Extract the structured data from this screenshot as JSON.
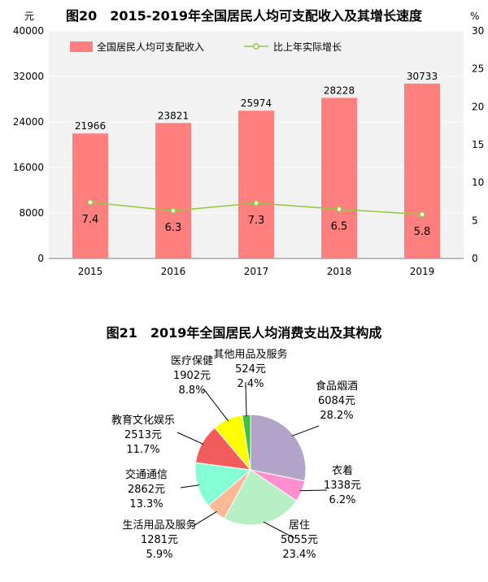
{
  "chart_data": [
    {
      "type": "bar",
      "title": "图20　2015-2019年全国居民人均可支配收入及其增长速度",
      "ylabel": "元",
      "y2label": "%",
      "categories": [
        "2015",
        "2016",
        "2017",
        "2018",
        "2019"
      ],
      "ylim": [
        0,
        40000
      ],
      "y2lim": [
        0,
        30
      ],
      "yticks": [
        "0",
        "8000",
        "16000",
        "24000",
        "32000",
        "40000"
      ],
      "y2ticks": [
        "0",
        "5",
        "10",
        "15",
        "20",
        "25",
        "30"
      ],
      "series": [
        {
          "name": "全国居民人均可支配收入",
          "type": "bar",
          "axis": "left",
          "values": [
            21966,
            23821,
            25974,
            28228,
            30733
          ],
          "color": "#ff7f7f"
        },
        {
          "name": "比上年实际增长",
          "type": "line",
          "axis": "right",
          "values": [
            7.4,
            6.3,
            7.3,
            6.5,
            5.8
          ],
          "color": "#92c83e"
        }
      ],
      "bar_labels": [
        "21966",
        "23821",
        "25974",
        "28228",
        "30733"
      ],
      "line_labels": [
        "7.4",
        "6.3",
        "7.3",
        "6.5",
        "5.8"
      ],
      "legend_position": "top",
      "grid": true
    },
    {
      "type": "pie",
      "title": "图21　2019年全国居民人均消费支出及其构成",
      "slices": [
        {
          "name": "食品烟酒",
          "amount": "6084元",
          "percent": "28.2%",
          "value": 28.2,
          "color": "#b2a4c9"
        },
        {
          "name": "衣着",
          "amount": "1338元",
          "percent": "6.2%",
          "value": 6.2,
          "color": "#ff8fd1"
        },
        {
          "name": "居住",
          "amount": "5055元",
          "percent": "23.4%",
          "value": 23.4,
          "color": "#b8f0c6"
        },
        {
          "name": "生活用品及服务",
          "amount": "1281元",
          "percent": "5.9%",
          "value": 5.9,
          "color": "#ffb996"
        },
        {
          "name": "交通通信",
          "amount": "2862元",
          "percent": "13.3%",
          "value": 13.3,
          "color": "#85ffd6"
        },
        {
          "name": "教育文化娱乐",
          "amount": "2513元",
          "percent": "11.7%",
          "value": 11.7,
          "color": "#f25c5c"
        },
        {
          "name": "医疗保健",
          "amount": "1902元",
          "percent": "8.8%",
          "value": 8.8,
          "color": "#ffff00"
        },
        {
          "name": "其他用品及服务",
          "amount": "524元",
          "percent": "2.4%",
          "value": 2.4,
          "color": "#3fbf3f"
        }
      ]
    }
  ]
}
